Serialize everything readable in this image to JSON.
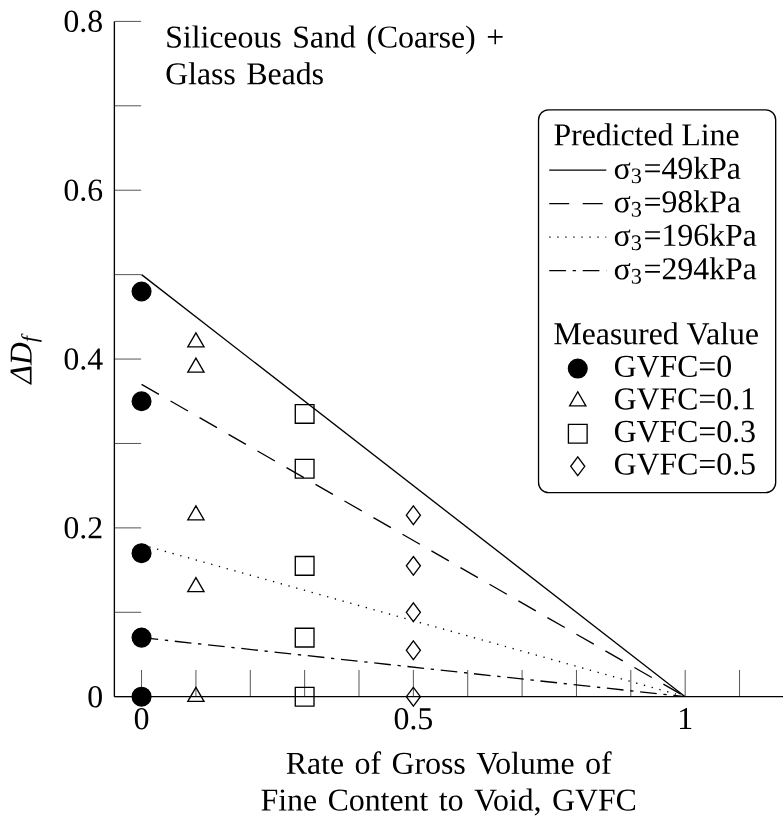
{
  "chart_data": {
    "type": "scatter",
    "title": "Siliceous Sand (Coarse) + Glass Beads",
    "xlabel": "Rate of Gross Volume of Fine Content to Void, GVFC",
    "ylabel": "ΔD$_{f}$",
    "legend_title": "Predicted Line",
    "annotations": [
      "Measured Value"
    ],
    "xlim": [
      -0.05,
      1.18
    ],
    "ylim": [
      0,
      0.8
    ],
    "xticks": [
      0,
      {
        "value": 0.1,
        "label": null
      },
      {
        "value": 0.2,
        "label": null
      },
      {
        "value": 0.3,
        "label": null
      },
      {
        "value": 0.4,
        "label": null
      },
      0.5,
      {
        "value": 0.6,
        "label": null
      },
      {
        "value": 0.7,
        "label": null
      },
      {
        "value": 0.8,
        "label": null
      },
      {
        "value": 0.9,
        "label": null
      },
      1,
      {
        "value": 1.1,
        "label": null
      }
    ],
    "yticks": [
      0,
      {
        "value": 0.1,
        "label": null
      },
      0.2,
      {
        "value": 0.3,
        "label": null
      },
      0.4,
      {
        "value": 0.5,
        "label": null
      },
      0.6,
      {
        "value": 0.7,
        "label": null
      },
      0.8
    ],
    "legend": "top right",
    "grid": false,
    "series": [
      {
        "name": "σ$_{3}$=49kPa",
        "type": "line",
        "color": "#000000",
        "x": [
          0,
          1
        ],
        "values": [
          0.5,
          0
        ],
        "marker": "none",
        "line_style": "solid"
      },
      {
        "name": "σ$_{3}$=98kPa",
        "type": "line",
        "color": "#000000",
        "x": [
          0,
          1
        ],
        "values": [
          0.37,
          0
        ],
        "marker": "none",
        "line_style": "dashed"
      },
      {
        "name": "σ$_{3}$=196kPa",
        "type": "line",
        "color": "#000000",
        "x": [
          0,
          1
        ],
        "values": [
          0.18,
          0
        ],
        "marker": "none",
        "line_style": "dotted"
      },
      {
        "name": "σ$_{3}$=294kPa",
        "type": "line",
        "color": "#000000",
        "x": [
          0,
          1
        ],
        "values": [
          0.07,
          0
        ],
        "marker": "none",
        "line_style": "dashdotted"
      },
      {
        "name": "GVFC=0",
        "color": "#000000",
        "x": [
          0,
          0,
          0,
          0,
          0
        ],
        "values": [
          0.48,
          0.35,
          0.17,
          0.07,
          0
        ],
        "marker": "circle"
      },
      {
        "name": "GVFC=0.1",
        "color": "#000000",
        "x": [
          0.1,
          0.1,
          0.1,
          0.1,
          0.1
        ],
        "values": [
          0.42,
          0.39,
          0.215,
          0.13,
          0
        ],
        "marker": "triangle"
      },
      {
        "name": "GVFC=0.3",
        "color": "#000000",
        "x": [
          0.3,
          0.3,
          0.3,
          0.3,
          0.3
        ],
        "values": [
          0.335,
          0.27,
          0.155,
          0.07,
          0
        ],
        "marker": "square"
      },
      {
        "name": "GVFC=0.5",
        "color": "#000000",
        "x": [
          0.5,
          0.5,
          0.5,
          0.5,
          0.5
        ],
        "values": [
          0.215,
          0.155,
          0.1,
          0.055,
          0
        ],
        "marker": "diamond"
      }
    ]
  }
}
